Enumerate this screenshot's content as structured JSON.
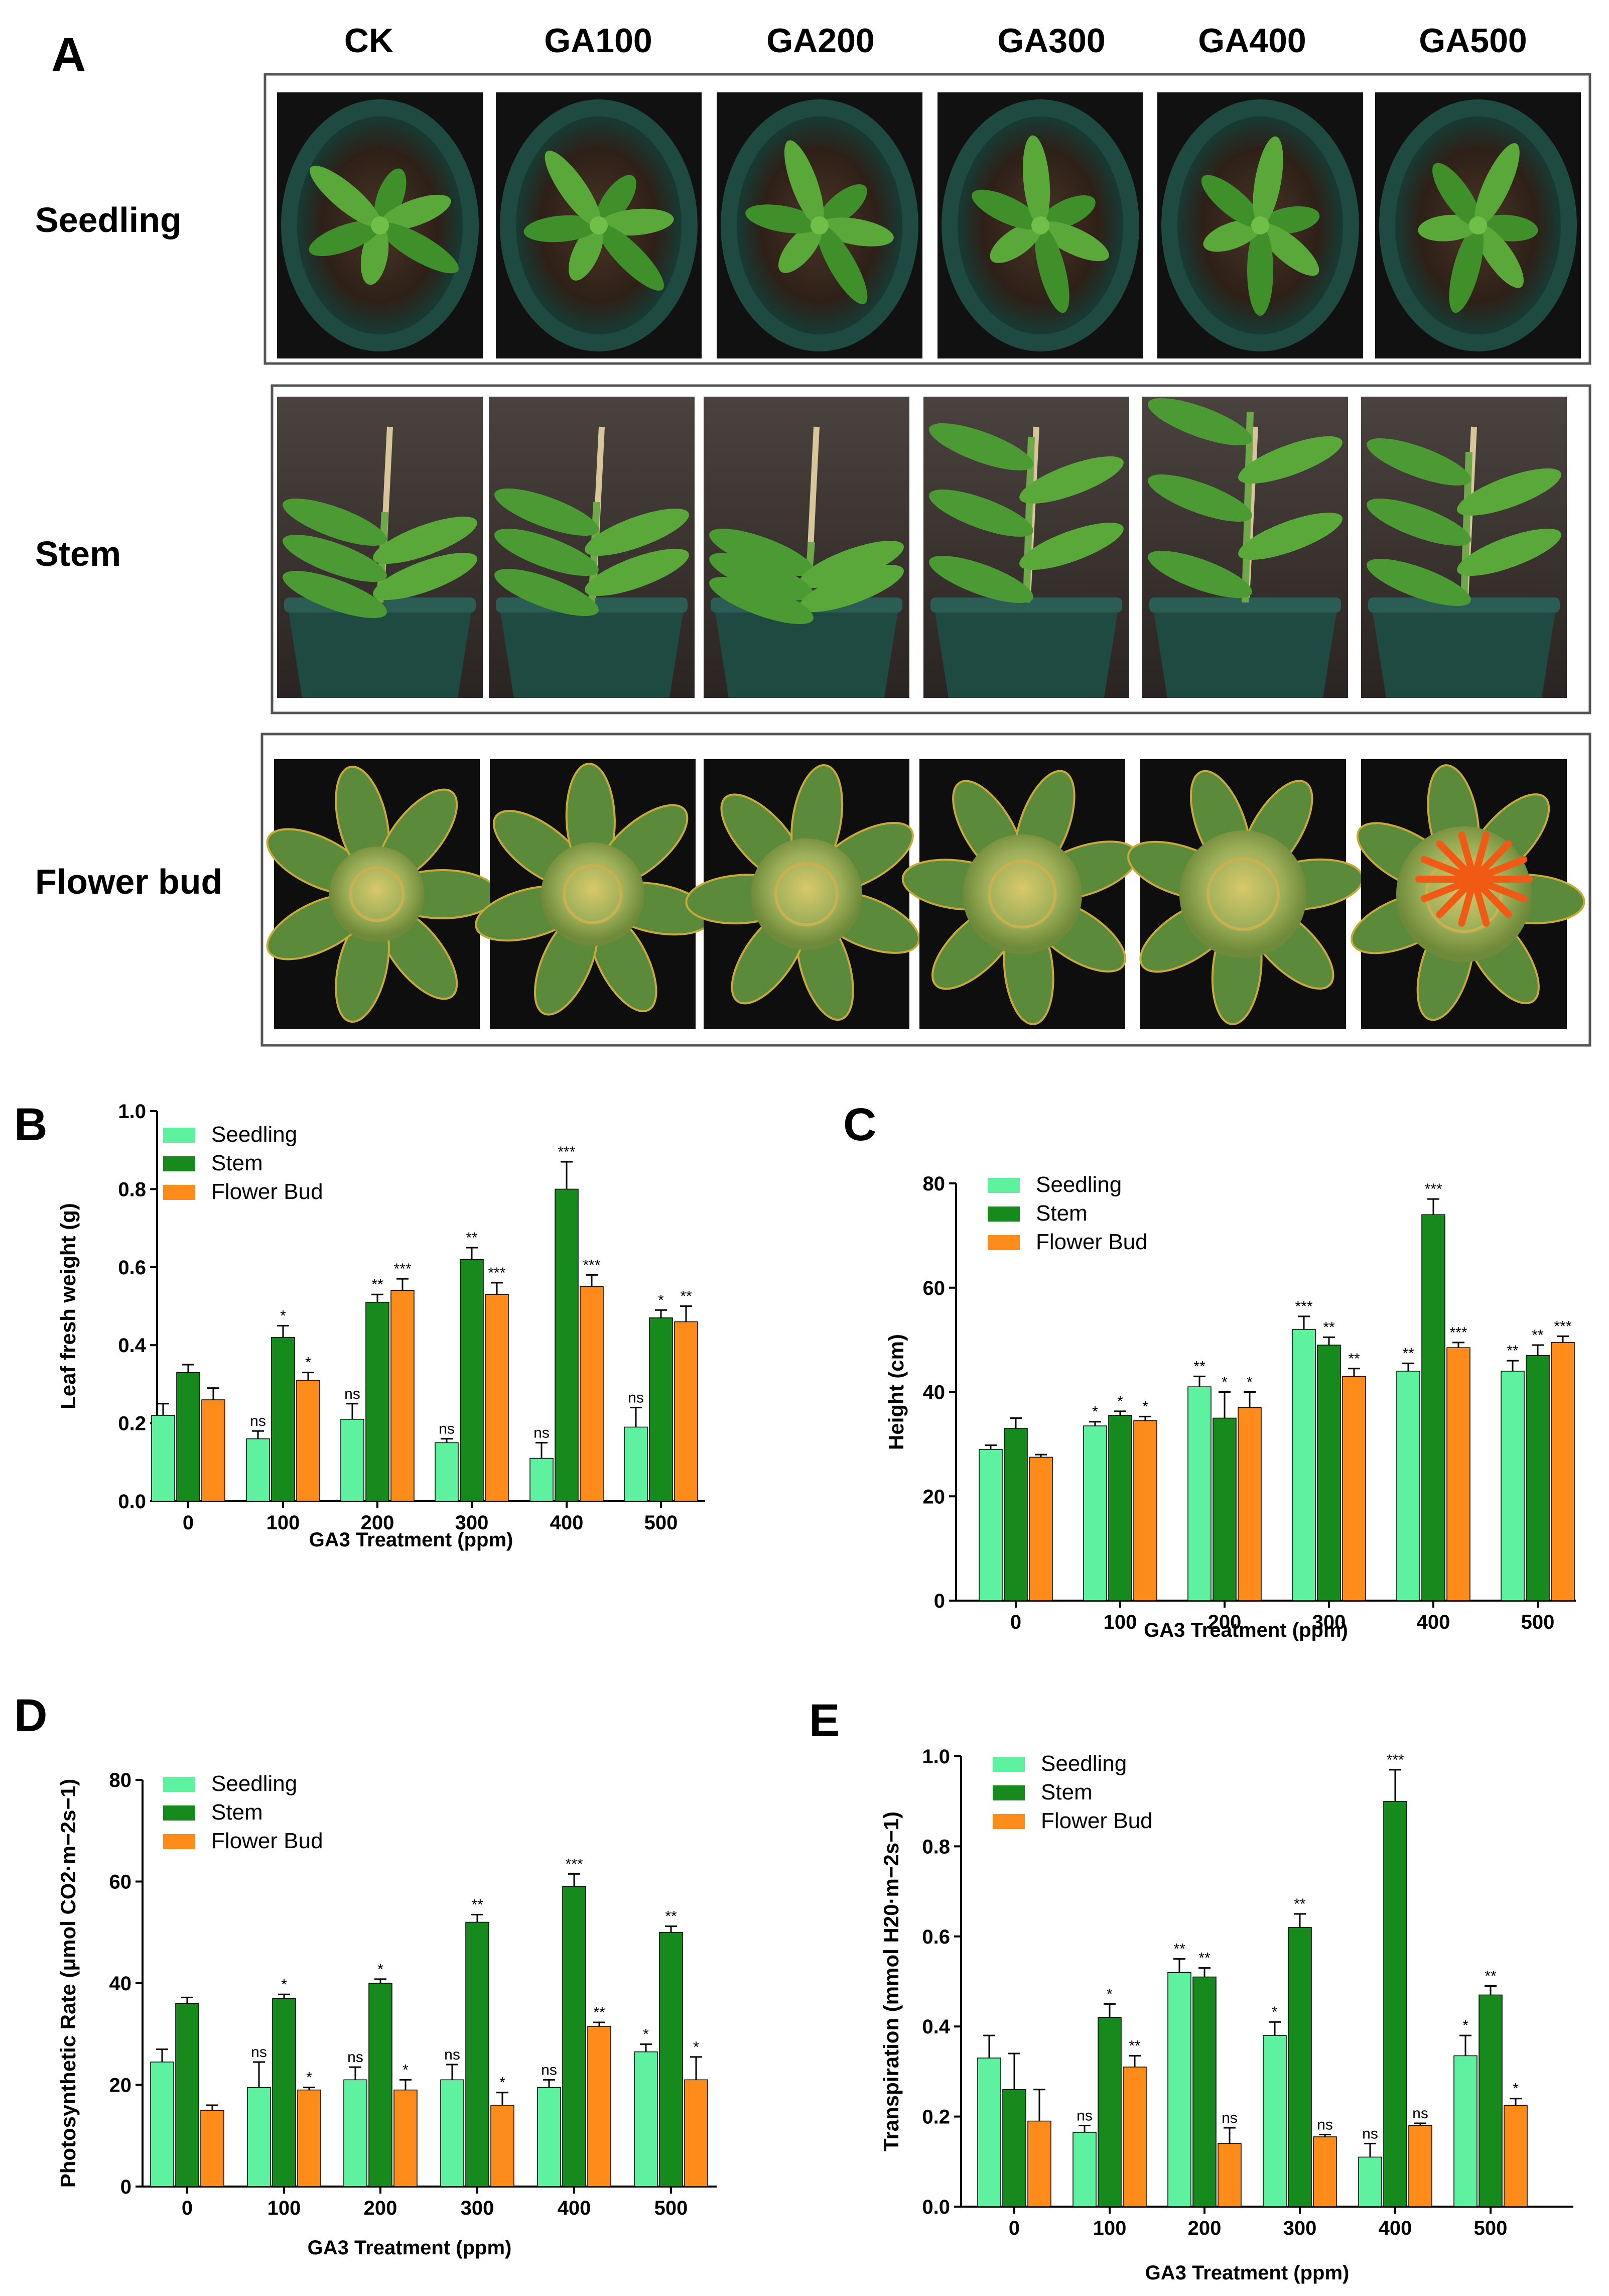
{
  "panel_a": {
    "letter": "A",
    "columns": [
      "CK",
      "GA100",
      "GA200",
      "GA300",
      "GA400",
      "GA500"
    ],
    "rows": [
      "Seedling",
      "Stem",
      "Flower bud"
    ]
  },
  "colors": {
    "seedling": "#5ef2a0",
    "stem": "#178a1e",
    "flower_bud": "#ff8c1a",
    "soil": "#3b2a1e",
    "pot": "#1f4a42",
    "wall": "#3a3330",
    "leaf": "#4f9a2e",
    "bud": "#a8b86a",
    "petal": "#f05a14"
  },
  "chart_data": [
    {
      "panel": "B",
      "type": "bar",
      "title": "",
      "xlabel": "GA3 Treatment (ppm)",
      "ylabel": "Leaf fresh weight (g)",
      "categories": [
        "0",
        "100",
        "200",
        "300",
        "400",
        "500"
      ],
      "ylim": [
        0,
        1.0
      ],
      "yticks": [
        "0.0",
        "0.2",
        "0.4",
        "0.6",
        "0.8",
        "1.0"
      ],
      "legend": "top-left",
      "series": [
        {
          "name": "Seedling",
          "values": [
            0.22,
            0.16,
            0.21,
            0.15,
            0.11,
            0.19
          ],
          "errors": [
            0.03,
            0.02,
            0.04,
            0.01,
            0.04,
            0.05
          ],
          "sig": [
            "",
            "ns",
            "ns",
            "ns",
            "ns",
            "ns"
          ]
        },
        {
          "name": "Stem",
          "values": [
            0.33,
            0.42,
            0.51,
            0.62,
            0.8,
            0.47
          ],
          "errors": [
            0.02,
            0.03,
            0.02,
            0.03,
            0.07,
            0.02
          ],
          "sig": [
            "",
            "*",
            "**",
            "**",
            "***",
            "*"
          ]
        },
        {
          "name": "Flower Bud",
          "values": [
            0.26,
            0.31,
            0.54,
            0.53,
            0.55,
            0.46
          ],
          "errors": [
            0.03,
            0.02,
            0.03,
            0.03,
            0.03,
            0.04
          ],
          "sig": [
            "",
            "*",
            "***",
            "***",
            "***",
            "**"
          ]
        }
      ]
    },
    {
      "panel": "C",
      "type": "bar",
      "title": "",
      "xlabel": "GA3 Treatment (ppm)",
      "ylabel": "Height (cm)",
      "categories": [
        "0",
        "100",
        "200",
        "300",
        "400",
        "500"
      ],
      "ylim": [
        0,
        80
      ],
      "yticks": [
        "0",
        "20",
        "40",
        "60",
        "80"
      ],
      "legend": "top-left",
      "series": [
        {
          "name": "Seedling",
          "values": [
            29,
            33.5,
            41,
            52,
            44,
            44
          ],
          "errors": [
            0.8,
            0.8,
            2,
            2.5,
            1.5,
            2
          ],
          "sig": [
            "",
            "*",
            "**",
            "***",
            "**",
            "**"
          ]
        },
        {
          "name": "Stem",
          "values": [
            33,
            35.5,
            35,
            49,
            74,
            47
          ],
          "errors": [
            2,
            0.8,
            5,
            1.5,
            3,
            2
          ],
          "sig": [
            "",
            "*",
            "*",
            "**",
            "***",
            "**"
          ]
        },
        {
          "name": "Flower Bud",
          "values": [
            27.5,
            34.5,
            37,
            43,
            48.5,
            49.5
          ],
          "errors": [
            0.5,
            0.8,
            3,
            1.5,
            1,
            1.2
          ],
          "sig": [
            "",
            "*",
            "*",
            "**",
            "***",
            "***"
          ]
        }
      ]
    },
    {
      "panel": "D",
      "type": "bar",
      "title": "",
      "xlabel": "GA3 Treatment (ppm)",
      "ylabel": "Photosynthetic Rate (μmol CO2·m−2s−1)",
      "categories": [
        "0",
        "100",
        "200",
        "300",
        "400",
        "500"
      ],
      "ylim": [
        0,
        80
      ],
      "yticks": [
        "0",
        "20",
        "40",
        "60",
        "80"
      ],
      "legend": "top-left",
      "series": [
        {
          "name": "Seedling",
          "values": [
            24.5,
            19.5,
            21,
            21,
            19.5,
            26.5
          ],
          "errors": [
            2.5,
            5,
            2.5,
            3,
            1.5,
            1.5
          ],
          "sig": [
            "",
            "ns",
            "ns",
            "ns",
            "ns",
            "*"
          ]
        },
        {
          "name": "Stem",
          "values": [
            36,
            37,
            40,
            52,
            59,
            50
          ],
          "errors": [
            1.2,
            0.8,
            0.8,
            1.5,
            2.5,
            1.2
          ],
          "sig": [
            "",
            "*",
            "*",
            "**",
            "***",
            "**"
          ]
        },
        {
          "name": "Flower Bud",
          "values": [
            15,
            19,
            19,
            16,
            31.5,
            21
          ],
          "errors": [
            1,
            0.5,
            2,
            2.5,
            0.8,
            4.5
          ],
          "sig": [
            "",
            "*",
            "*",
            "*",
            "**",
            "*"
          ]
        }
      ]
    },
    {
      "panel": "E",
      "type": "bar",
      "title": "",
      "xlabel": "GA3 Treatment (ppm)",
      "ylabel": "Transpiration (mmol H20·m−2s−1)",
      "categories": [
        "0",
        "100",
        "200",
        "300",
        "400",
        "500"
      ],
      "ylim": [
        0,
        1.0
      ],
      "yticks": [
        "0.0",
        "0.2",
        "0.4",
        "0.6",
        "0.8",
        "1.0"
      ],
      "legend": "top-left",
      "series": [
        {
          "name": "Seedling",
          "values": [
            0.33,
            0.165,
            0.52,
            0.38,
            0.11,
            0.335
          ],
          "errors": [
            0.05,
            0.015,
            0.03,
            0.03,
            0.03,
            0.045
          ],
          "sig": [
            "",
            "ns",
            "**",
            "*",
            "ns",
            "*"
          ]
        },
        {
          "name": "Stem",
          "values": [
            0.26,
            0.42,
            0.51,
            0.62,
            0.9,
            0.47
          ],
          "errors": [
            0.08,
            0.03,
            0.02,
            0.03,
            0.07,
            0.02
          ],
          "sig": [
            "",
            "*",
            "**",
            "**",
            "***",
            "**"
          ]
        },
        {
          "name": "Flower Bud",
          "values": [
            0.19,
            0.31,
            0.14,
            0.155,
            0.18,
            0.225
          ],
          "errors": [
            0.07,
            0.025,
            0.035,
            0.005,
            0.005,
            0.015
          ],
          "sig": [
            "",
            "**",
            "ns",
            "ns",
            "ns",
            "*"
          ]
        }
      ]
    }
  ]
}
